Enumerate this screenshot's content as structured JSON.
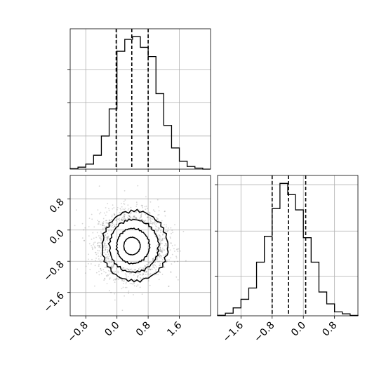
{
  "chart_data": [
    {
      "type": "histogram",
      "panel": "top-left",
      "parameter_index": 0,
      "xlim": [
        -1.2,
        2.4
      ],
      "x_ticks": [
        -0.8,
        0.0,
        0.8,
        1.6
      ],
      "bin_edges": [
        -1.2,
        -1.0,
        -0.8,
        -0.6,
        -0.4,
        -0.2,
        0.0,
        0.2,
        0.4,
        0.6,
        0.8,
        1.0,
        1.2,
        1.4,
        1.6,
        1.8,
        2.0,
        2.2,
        2.4
      ],
      "counts": [
        0.4,
        1.5,
        3.8,
        10.5,
        25.0,
        45.5,
        89.0,
        98.0,
        100.0,
        92.0,
        85.0,
        57.0,
        33.0,
        16.0,
        6.0,
        2.0,
        0.8,
        0.0
      ],
      "quantiles": [
        -0.02,
        0.38,
        0.8
      ],
      "y_ticks": [
        25,
        50,
        75
      ],
      "ylim": [
        0,
        106
      ],
      "grid": true
    },
    {
      "type": "scatter-density",
      "panel": "bottom-left",
      "xlim": [
        -1.2,
        2.4
      ],
      "ylim": [
        -2.2,
        1.4
      ],
      "x_ticks": [
        -0.8,
        0.0,
        0.8,
        1.6
      ],
      "x_tick_labels": [
        "−0.8",
        "0.0",
        "0.8",
        "1.6"
      ],
      "y_ticks": [
        -1.6,
        -0.8,
        0.0,
        0.8
      ],
      "y_tick_labels": [
        "−1.6",
        "−0.8",
        "0.0",
        "0.8"
      ],
      "center": [
        0.38,
        -0.37
      ],
      "spread": [
        0.42,
        0.42
      ],
      "contour_levels_sigma": [
        0.5,
        1.0,
        1.5,
        2.0
      ],
      "grid": true
    },
    {
      "type": "histogram",
      "panel": "bottom-right",
      "parameter_index": 1,
      "xlim": [
        -2.2,
        1.4
      ],
      "x_ticks": [
        -1.6,
        -0.8,
        0.0,
        0.8
      ],
      "x_tick_labels": [
        "−1.6",
        "−0.8",
        "0.0",
        "0.8"
      ],
      "bin_edges": [
        -2.2,
        -2.0,
        -1.8,
        -1.6,
        -1.4,
        -1.2,
        -1.0,
        -0.8,
        -0.6,
        -0.4,
        -0.2,
        0.0,
        0.2,
        0.4,
        0.6,
        0.8,
        1.0,
        1.2,
        1.4
      ],
      "counts": [
        0.4,
        2.0,
        6.0,
        12.5,
        21.0,
        40.5,
        60.0,
        81.0,
        100.0,
        91.5,
        80.0,
        59.0,
        40.5,
        18.0,
        9.0,
        3.0,
        1.5,
        0.3
      ],
      "quantiles": [
        -0.8,
        -0.38,
        0.06
      ],
      "y_ticks": [
        30,
        64,
        99
      ],
      "ylim": [
        0,
        106
      ],
      "grid": true
    }
  ]
}
